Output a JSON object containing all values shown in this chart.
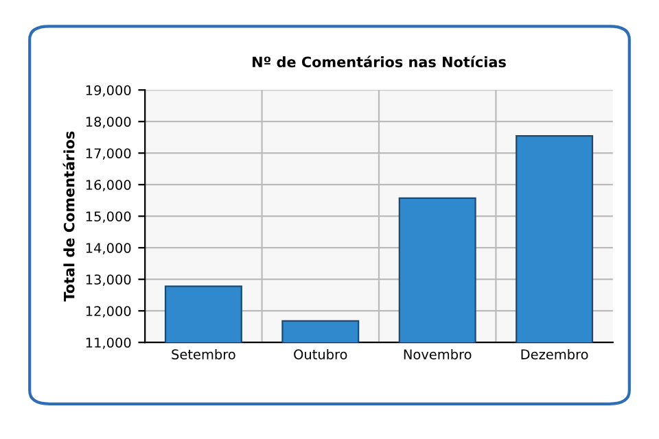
{
  "chart_data": {
    "type": "bar",
    "title": "Nº de Comentários nas Notícias",
    "ylabel": "Total de Comentários",
    "categories": [
      "Setembro",
      "Outubro",
      "Novembro",
      "Dezembro"
    ],
    "values": [
      12780,
      11680,
      15570,
      17545
    ],
    "color": "#3089cc",
    "ylim": [
      11000,
      19000
    ],
    "yticks": [
      {
        "value": 11000,
        "label": "11,000"
      },
      {
        "value": 12000,
        "label": "12,000"
      },
      {
        "value": 13000,
        "label": "13,000"
      },
      {
        "value": 14000,
        "label": "14,000"
      },
      {
        "value": 15000,
        "label": "15,000"
      },
      {
        "value": 16000,
        "label": "16,000"
      },
      {
        "value": 17000,
        "label": "17,000"
      },
      {
        "value": 18000,
        "label": "18,000"
      },
      {
        "value": 19000,
        "label": "19,000"
      }
    ],
    "grid": true
  }
}
